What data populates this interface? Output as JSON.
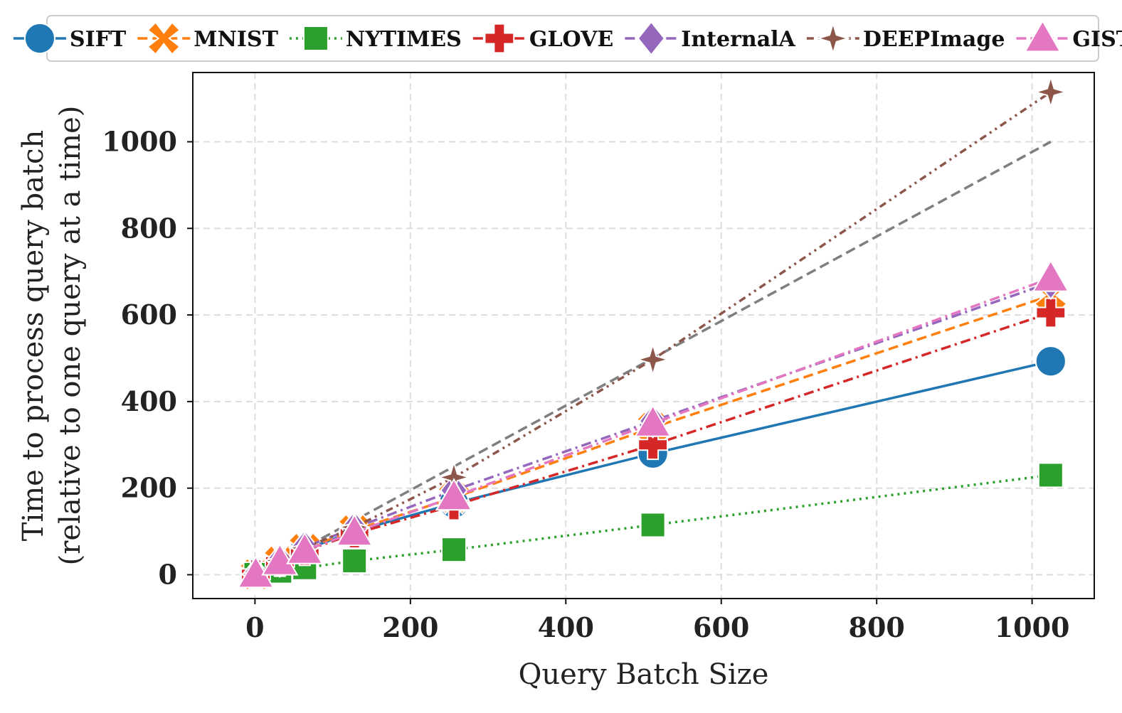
{
  "chart_data": {
    "type": "line",
    "title": "",
    "xlabel": "Query Batch Size",
    "ylabel_line1": "Time to process query batch",
    "ylabel_line2": "(relative to one query at a time)",
    "xlim": [
      -80,
      1080
    ],
    "ylim": [
      -55,
      1160
    ],
    "xticks": [
      0,
      200,
      400,
      600,
      800,
      1000
    ],
    "yticks": [
      0,
      200,
      400,
      600,
      800,
      1000
    ],
    "grid": true,
    "legend_position": "top",
    "x": [
      1,
      32,
      64,
      128,
      256,
      512,
      1024
    ],
    "series": [
      {
        "name": "SIFT",
        "values": [
          1,
          30,
          58,
          100,
          165,
          280,
          493
        ],
        "color": "#1f77b4",
        "marker": "circle",
        "dash": "solid"
      },
      {
        "name": "MNIST",
        "values": [
          1,
          31,
          60,
          103,
          178,
          340,
          645
        ],
        "color": "#ff7f0e",
        "marker": "x",
        "dash": "dashed"
      },
      {
        "name": "NYTIMES",
        "values": [
          1,
          8,
          16,
          32,
          58,
          115,
          230
        ],
        "color": "#2ca02c",
        "marker": "square",
        "dash": "dotted"
      },
      {
        "name": "GLOVE",
        "values": [
          1,
          30,
          55,
          95,
          160,
          300,
          605
        ],
        "color": "#d62728",
        "marker": "plus",
        "dash": "dashdot"
      },
      {
        "name": "InternalA",
        "values": [
          1,
          33,
          64,
          108,
          195,
          355,
          675
        ],
        "color": "#9467bd",
        "marker": "diamond",
        "dash": "dashdot"
      },
      {
        "name": "DEEPImage",
        "values": [
          1,
          33,
          62,
          110,
          225,
          497,
          1115
        ],
        "color": "#8c564b",
        "marker": "star",
        "dash": "dashdotdot"
      },
      {
        "name": "GIST",
        "values": [
          1,
          30,
          56,
          98,
          180,
          350,
          685
        ],
        "color": "#e377c2",
        "marker": "triangle",
        "dash": "dashdot"
      }
    ],
    "reference_line": {
      "name": "y = x",
      "x": [
        1,
        1024
      ],
      "values": [
        1,
        1000
      ],
      "color": "#7f7f7f",
      "dash": "dashed"
    }
  }
}
